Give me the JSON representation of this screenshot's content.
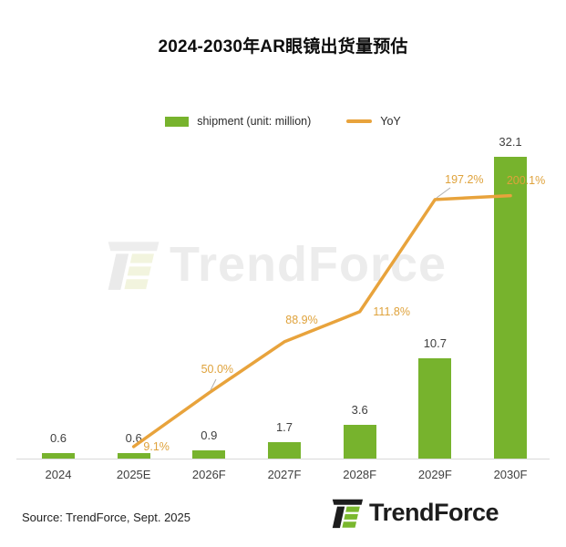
{
  "title": "2024-2030年AR眼镜出货量预估",
  "legend": {
    "shipment_label": "shipment (unit: million)",
    "yoy_label": "YoY"
  },
  "colors": {
    "bar_green": "#77B32D",
    "line_orange": "#E8A33C",
    "yoy_label_orange": "#DFA23B",
    "value_label_dark": "#3F3F3F",
    "axis_gray": "#D9D9D9"
  },
  "chart_data": {
    "type": "bar",
    "title": "2024-2030年AR眼镜出货量预估",
    "categories": [
      "2024",
      "2025E",
      "2026F",
      "2027F",
      "2028F",
      "2029F",
      "2030F"
    ],
    "series": [
      {
        "name": "shipment (unit: million)",
        "type": "bar",
        "values": [
          0.6,
          0.6,
          0.9,
          1.7,
          3.6,
          10.7,
          32.1
        ],
        "labels": [
          "0.6",
          "0.6",
          "0.9",
          "1.7",
          "3.6",
          "10.7",
          "32.1"
        ]
      },
      {
        "name": "YoY",
        "type": "line",
        "values": [
          null,
          9.1,
          50.0,
          88.9,
          111.8,
          197.2,
          200.1
        ],
        "labels": [
          null,
          "9.1%",
          "50.0%",
          "88.9%",
          "111.8%",
          "197.2%",
          "200.1%"
        ]
      }
    ],
    "xlabel": "",
    "ylabel": "shipment (unit: million)",
    "y2label": "YoY",
    "ylim": [
      0,
      35
    ],
    "y2lim": [
      0,
      210
    ],
    "grid": false,
    "axes_value_labels_visible": false,
    "legend_position": "top"
  },
  "watermark": {
    "text": "TrendForce"
  },
  "footer": {
    "source": "Source: TrendForce, Sept. 2025",
    "logo_text": "TrendForce"
  }
}
